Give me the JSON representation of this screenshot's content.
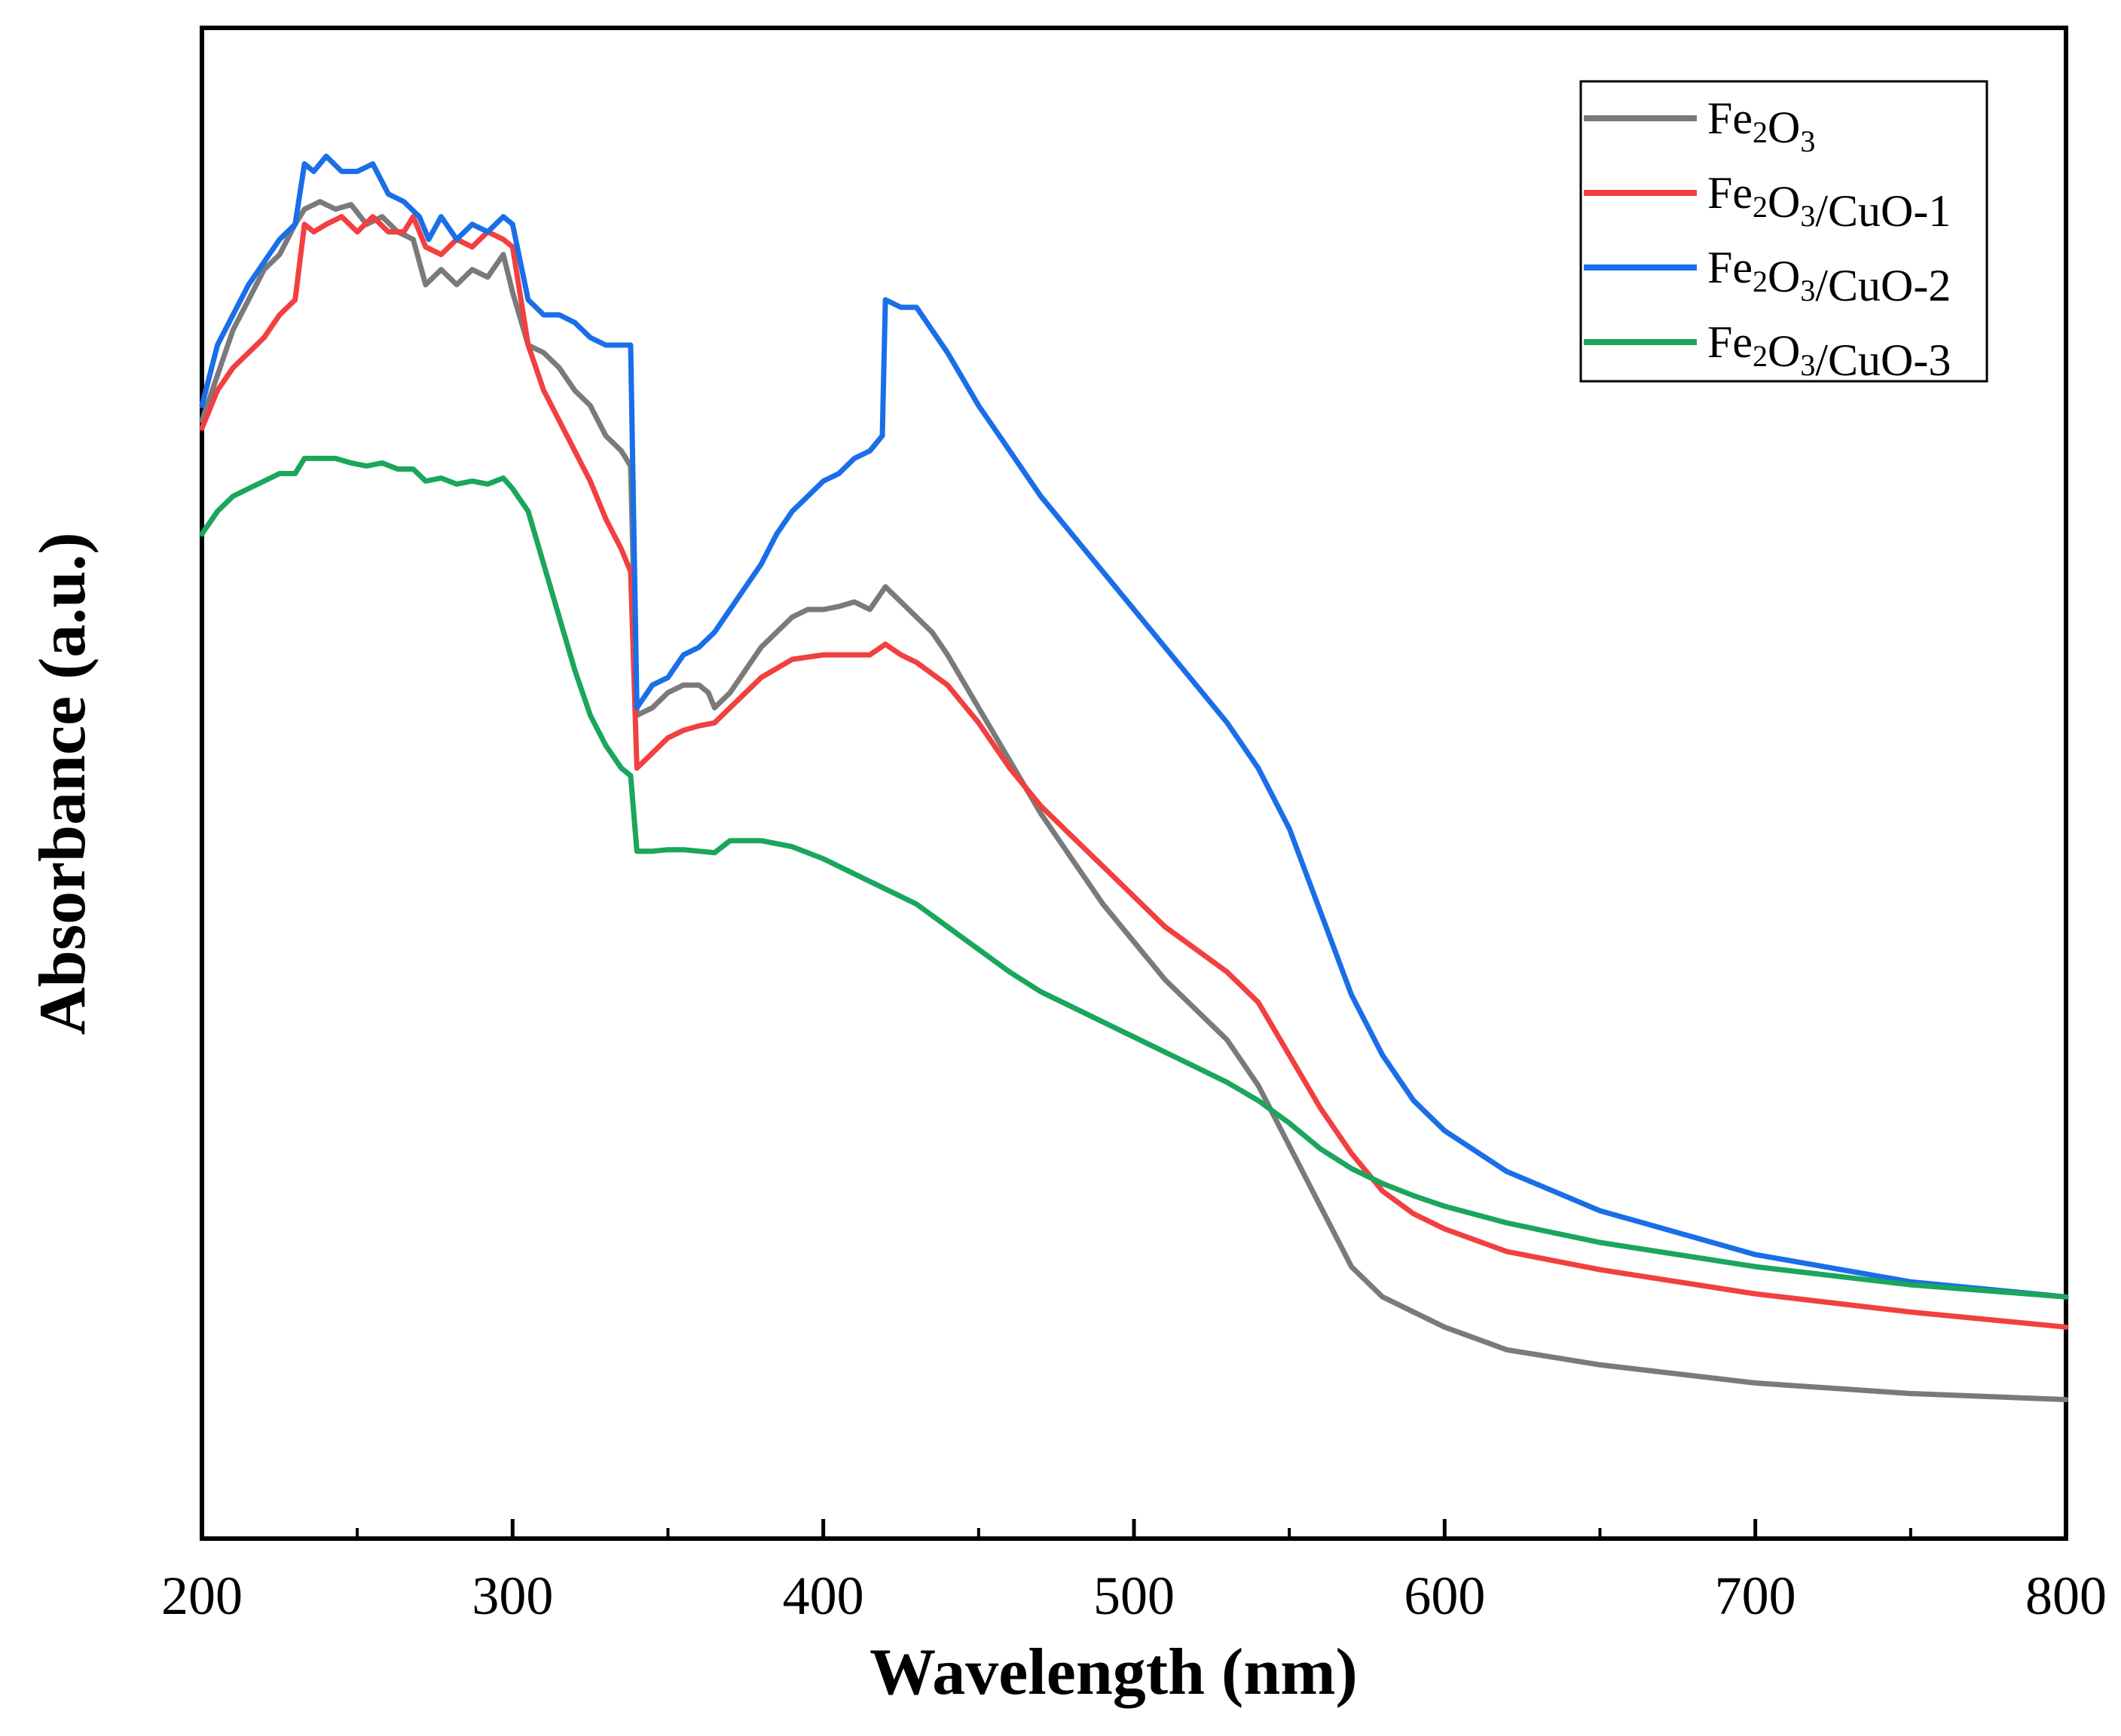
{
  "chart_data": {
    "type": "line",
    "xlabel": "Wavelength (nm)",
    "ylabel": "Absorbance (a.u.)",
    "xlim": [
      200,
      800
    ],
    "ylim": [
      0.0,
      1.0
    ],
    "x_ticks": [
      200,
      300,
      400,
      500,
      600,
      700,
      800
    ],
    "x_tick_labels": [
      "200",
      "300",
      "400",
      "500",
      "600",
      "700",
      "800"
    ],
    "y_ticks_labeled": false,
    "grid": false,
    "legend_position": "top-right",
    "series": [
      {
        "name": "Fe2O3",
        "label_parts": [
          [
            "Fe",
            ""
          ],
          [
            "2",
            "sub"
          ],
          [
            "O",
            ""
          ],
          [
            "3",
            "sub"
          ]
        ],
        "color": "#7a7a7a",
        "points": [
          [
            200,
            0.74
          ],
          [
            205,
            0.77
          ],
          [
            210,
            0.8
          ],
          [
            215,
            0.82
          ],
          [
            220,
            0.84
          ],
          [
            225,
            0.85
          ],
          [
            230,
            0.87
          ],
          [
            233,
            0.88
          ],
          [
            238,
            0.885
          ],
          [
            243,
            0.88
          ],
          [
            248,
            0.883
          ],
          [
            253,
            0.87
          ],
          [
            258,
            0.875
          ],
          [
            263,
            0.865
          ],
          [
            268,
            0.86
          ],
          [
            272,
            0.83
          ],
          [
            277,
            0.84
          ],
          [
            282,
            0.83
          ],
          [
            287,
            0.84
          ],
          [
            292,
            0.835
          ],
          [
            297,
            0.85
          ],
          [
            300,
            0.825
          ],
          [
            305,
            0.79
          ],
          [
            310,
            0.785
          ],
          [
            315,
            0.775
          ],
          [
            320,
            0.76
          ],
          [
            325,
            0.75
          ],
          [
            330,
            0.73
          ],
          [
            335,
            0.72
          ],
          [
            338,
            0.71
          ],
          [
            340,
            0.545
          ],
          [
            345,
            0.55
          ],
          [
            350,
            0.56
          ],
          [
            355,
            0.565
          ],
          [
            360,
            0.565
          ],
          [
            363,
            0.56
          ],
          [
            365,
            0.55
          ],
          [
            370,
            0.56
          ],
          [
            375,
            0.575
          ],
          [
            380,
            0.59
          ],
          [
            385,
            0.6
          ],
          [
            390,
            0.61
          ],
          [
            395,
            0.615
          ],
          [
            400,
            0.615
          ],
          [
            405,
            0.617
          ],
          [
            410,
            0.62
          ],
          [
            415,
            0.615
          ],
          [
            420,
            0.63
          ],
          [
            425,
            0.62
          ],
          [
            430,
            0.61
          ],
          [
            435,
            0.6
          ],
          [
            440,
            0.585
          ],
          [
            450,
            0.55
          ],
          [
            460,
            0.515
          ],
          [
            470,
            0.48
          ],
          [
            480,
            0.45
          ],
          [
            490,
            0.42
          ],
          [
            500,
            0.395
          ],
          [
            510,
            0.37
          ],
          [
            520,
            0.35
          ],
          [
            530,
            0.33
          ],
          [
            540,
            0.3
          ],
          [
            550,
            0.26
          ],
          [
            560,
            0.22
          ],
          [
            570,
            0.18
          ],
          [
            580,
            0.16
          ],
          [
            590,
            0.15
          ],
          [
            600,
            0.14
          ],
          [
            620,
            0.125
          ],
          [
            650,
            0.115
          ],
          [
            700,
            0.103
          ],
          [
            750,
            0.096
          ],
          [
            800,
            0.092
          ]
        ]
      },
      {
        "name": "Fe2O3/CuO-1",
        "label_parts": [
          [
            "Fe",
            ""
          ],
          [
            "2",
            "sub"
          ],
          [
            "O",
            ""
          ],
          [
            "3",
            "sub"
          ],
          [
            "/CuO-1",
            ""
          ]
        ],
        "color": "#f23f3f",
        "points": [
          [
            200,
            0.735
          ],
          [
            205,
            0.76
          ],
          [
            210,
            0.775
          ],
          [
            215,
            0.785
          ],
          [
            220,
            0.795
          ],
          [
            225,
            0.81
          ],
          [
            230,
            0.82
          ],
          [
            233,
            0.87
          ],
          [
            236,
            0.865
          ],
          [
            240,
            0.87
          ],
          [
            245,
            0.875
          ],
          [
            250,
            0.865
          ],
          [
            255,
            0.875
          ],
          [
            260,
            0.865
          ],
          [
            265,
            0.865
          ],
          [
            268,
            0.875
          ],
          [
            272,
            0.855
          ],
          [
            277,
            0.85
          ],
          [
            282,
            0.86
          ],
          [
            287,
            0.855
          ],
          [
            292,
            0.865
          ],
          [
            297,
            0.86
          ],
          [
            300,
            0.855
          ],
          [
            305,
            0.79
          ],
          [
            310,
            0.76
          ],
          [
            315,
            0.74
          ],
          [
            320,
            0.72
          ],
          [
            325,
            0.7
          ],
          [
            330,
            0.675
          ],
          [
            335,
            0.655
          ],
          [
            338,
            0.64
          ],
          [
            340,
            0.51
          ],
          [
            345,
            0.52
          ],
          [
            350,
            0.53
          ],
          [
            355,
            0.535
          ],
          [
            360,
            0.538
          ],
          [
            365,
            0.54
          ],
          [
            370,
            0.55
          ],
          [
            375,
            0.56
          ],
          [
            380,
            0.57
          ],
          [
            390,
            0.582
          ],
          [
            400,
            0.585
          ],
          [
            410,
            0.585
          ],
          [
            415,
            0.585
          ],
          [
            420,
            0.592
          ],
          [
            425,
            0.585
          ],
          [
            430,
            0.58
          ],
          [
            440,
            0.565
          ],
          [
            450,
            0.54
          ],
          [
            460,
            0.51
          ],
          [
            470,
            0.485
          ],
          [
            480,
            0.465
          ],
          [
            490,
            0.445
          ],
          [
            500,
            0.425
          ],
          [
            510,
            0.405
          ],
          [
            520,
            0.39
          ],
          [
            530,
            0.375
          ],
          [
            540,
            0.355
          ],
          [
            550,
            0.32
          ],
          [
            560,
            0.285
          ],
          [
            570,
            0.255
          ],
          [
            580,
            0.23
          ],
          [
            590,
            0.215
          ],
          [
            600,
            0.205
          ],
          [
            620,
            0.19
          ],
          [
            650,
            0.178
          ],
          [
            700,
            0.162
          ],
          [
            750,
            0.15
          ],
          [
            800,
            0.14
          ]
        ]
      },
      {
        "name": "Fe2O3/CuO-2",
        "label_parts": [
          [
            "Fe",
            ""
          ],
          [
            "2",
            "sub"
          ],
          [
            "O",
            ""
          ],
          [
            "3",
            "sub"
          ],
          [
            "/CuO-2",
            ""
          ]
        ],
        "color": "#1a6ee8",
        "points": [
          [
            200,
            0.75
          ],
          [
            205,
            0.79
          ],
          [
            210,
            0.81
          ],
          [
            215,
            0.83
          ],
          [
            220,
            0.845
          ],
          [
            225,
            0.86
          ],
          [
            230,
            0.87
          ],
          [
            233,
            0.91
          ],
          [
            236,
            0.905
          ],
          [
            240,
            0.915
          ],
          [
            245,
            0.905
          ],
          [
            250,
            0.905
          ],
          [
            255,
            0.91
          ],
          [
            260,
            0.89
          ],
          [
            265,
            0.885
          ],
          [
            270,
            0.875
          ],
          [
            273,
            0.86
          ],
          [
            277,
            0.875
          ],
          [
            282,
            0.86
          ],
          [
            287,
            0.87
          ],
          [
            292,
            0.865
          ],
          [
            297,
            0.875
          ],
          [
            300,
            0.87
          ],
          [
            305,
            0.82
          ],
          [
            310,
            0.81
          ],
          [
            315,
            0.81
          ],
          [
            320,
            0.805
          ],
          [
            325,
            0.795
          ],
          [
            330,
            0.79
          ],
          [
            335,
            0.79
          ],
          [
            338,
            0.79
          ],
          [
            340,
            0.55
          ],
          [
            345,
            0.565
          ],
          [
            350,
            0.57
          ],
          [
            355,
            0.585
          ],
          [
            360,
            0.59
          ],
          [
            365,
            0.6
          ],
          [
            370,
            0.615
          ],
          [
            375,
            0.63
          ],
          [
            380,
            0.645
          ],
          [
            385,
            0.665
          ],
          [
            390,
            0.68
          ],
          [
            395,
            0.69
          ],
          [
            400,
            0.7
          ],
          [
            405,
            0.705
          ],
          [
            410,
            0.715
          ],
          [
            415,
            0.72
          ],
          [
            419,
            0.73
          ],
          [
            420,
            0.82
          ],
          [
            425,
            0.815
          ],
          [
            430,
            0.815
          ],
          [
            435,
            0.8
          ],
          [
            440,
            0.785
          ],
          [
            450,
            0.75
          ],
          [
            460,
            0.72
          ],
          [
            470,
            0.69
          ],
          [
            480,
            0.665
          ],
          [
            490,
            0.64
          ],
          [
            500,
            0.615
          ],
          [
            510,
            0.59
          ],
          [
            520,
            0.565
          ],
          [
            530,
            0.54
          ],
          [
            540,
            0.51
          ],
          [
            550,
            0.47
          ],
          [
            560,
            0.415
          ],
          [
            570,
            0.36
          ],
          [
            580,
            0.32
          ],
          [
            590,
            0.29
          ],
          [
            600,
            0.27
          ],
          [
            620,
            0.243
          ],
          [
            650,
            0.217
          ],
          [
            700,
            0.188
          ],
          [
            750,
            0.17
          ],
          [
            800,
            0.16
          ]
        ]
      },
      {
        "name": "Fe2O3/CuO-3",
        "label_parts": [
          [
            "Fe",
            ""
          ],
          [
            "2",
            "sub"
          ],
          [
            "O",
            ""
          ],
          [
            "3",
            "sub"
          ],
          [
            "/CuO-3",
            ""
          ]
        ],
        "color": "#1aa65c",
        "points": [
          [
            200,
            0.665
          ],
          [
            205,
            0.68
          ],
          [
            210,
            0.69
          ],
          [
            215,
            0.695
          ],
          [
            220,
            0.7
          ],
          [
            225,
            0.705
          ],
          [
            230,
            0.705
          ],
          [
            233,
            0.715
          ],
          [
            238,
            0.715
          ],
          [
            243,
            0.715
          ],
          [
            248,
            0.712
          ],
          [
            253,
            0.71
          ],
          [
            258,
            0.712
          ],
          [
            263,
            0.708
          ],
          [
            268,
            0.708
          ],
          [
            272,
            0.7
          ],
          [
            277,
            0.702
          ],
          [
            282,
            0.698
          ],
          [
            287,
            0.7
          ],
          [
            292,
            0.698
          ],
          [
            297,
            0.702
          ],
          [
            300,
            0.695
          ],
          [
            305,
            0.68
          ],
          [
            310,
            0.645
          ],
          [
            315,
            0.61
          ],
          [
            320,
            0.575
          ],
          [
            325,
            0.545
          ],
          [
            330,
            0.525
          ],
          [
            335,
            0.51
          ],
          [
            338,
            0.505
          ],
          [
            340,
            0.455
          ],
          [
            345,
            0.455
          ],
          [
            350,
            0.456
          ],
          [
            355,
            0.456
          ],
          [
            360,
            0.455
          ],
          [
            365,
            0.454
          ],
          [
            370,
            0.462
          ],
          [
            375,
            0.462
          ],
          [
            380,
            0.462
          ],
          [
            390,
            0.458
          ],
          [
            400,
            0.45
          ],
          [
            410,
            0.44
          ],
          [
            420,
            0.43
          ],
          [
            430,
            0.42
          ],
          [
            440,
            0.405
          ],
          [
            450,
            0.39
          ],
          [
            460,
            0.375
          ],
          [
            470,
            0.362
          ],
          [
            480,
            0.352
          ],
          [
            490,
            0.342
          ],
          [
            500,
            0.332
          ],
          [
            510,
            0.322
          ],
          [
            520,
            0.312
          ],
          [
            530,
            0.302
          ],
          [
            540,
            0.29
          ],
          [
            550,
            0.275
          ],
          [
            560,
            0.258
          ],
          [
            570,
            0.245
          ],
          [
            580,
            0.235
          ],
          [
            590,
            0.227
          ],
          [
            600,
            0.22
          ],
          [
            620,
            0.209
          ],
          [
            650,
            0.196
          ],
          [
            700,
            0.18
          ],
          [
            750,
            0.168
          ],
          [
            800,
            0.16
          ]
        ]
      }
    ]
  }
}
